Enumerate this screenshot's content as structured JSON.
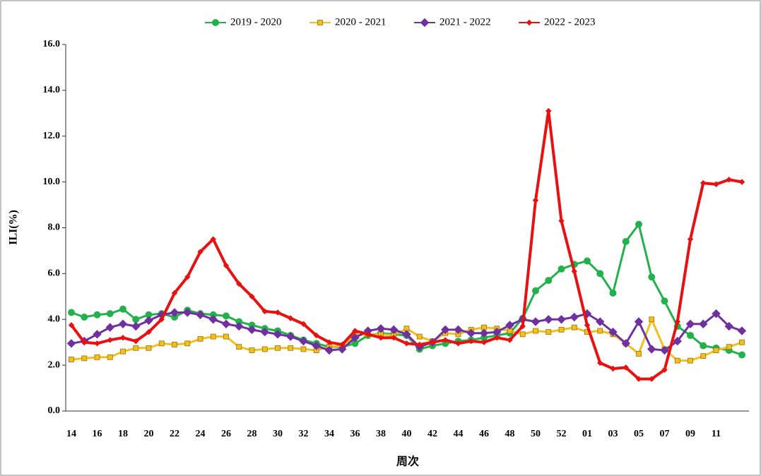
{
  "chart_data": {
    "type": "line",
    "x_label": "周次",
    "y_label": "ILI(%)",
    "categories": [
      "14",
      null,
      "16",
      null,
      "18",
      null,
      "20",
      null,
      "22",
      null,
      "24",
      null,
      "26",
      null,
      "28",
      null,
      "30",
      null,
      "32",
      null,
      "34",
      null,
      "36",
      null,
      "38",
      null,
      "40",
      null,
      "42",
      null,
      "44",
      null,
      "46",
      null,
      "48",
      null,
      "50",
      null,
      "52",
      null,
      "01",
      null,
      "03",
      null,
      "05",
      null,
      "07",
      null,
      "09",
      null,
      "11",
      null,
      null
    ],
    "ylim": [
      0,
      16
    ],
    "yticks": [
      {
        "value": 0,
        "label": "0.0"
      },
      {
        "value": 2,
        "label": "2.0"
      },
      {
        "value": 4,
        "label": "4.0"
      },
      {
        "value": 6,
        "label": "6.0"
      },
      {
        "value": 8,
        "label": "8.0"
      },
      {
        "value": 10,
        "label": "10.0"
      },
      {
        "value": 12,
        "label": "12.0"
      },
      {
        "value": 14,
        "label": "14.0"
      },
      {
        "value": 16,
        "label": "16.0"
      }
    ],
    "grid": false,
    "legend": "top",
    "series": [
      {
        "name": "2019 - 2020",
        "color": "#22b14c",
        "marker": "circle",
        "values": [
          4.3,
          4.1,
          4.2,
          4.25,
          4.45,
          4.0,
          4.2,
          4.25,
          4.1,
          4.4,
          4.25,
          4.2,
          4.15,
          3.9,
          3.75,
          3.6,
          3.5,
          3.3,
          3.1,
          2.95,
          2.8,
          2.8,
          2.95,
          3.3,
          3.4,
          3.35,
          3.3,
          2.7,
          2.85,
          2.95,
          3.05,
          3.1,
          3.2,
          3.3,
          3.4,
          4.05,
          5.25,
          5.7,
          6.2,
          6.4,
          6.55,
          6.0,
          5.15,
          7.4,
          8.15,
          5.85,
          4.8,
          3.7,
          3.3,
          2.85,
          2.75,
          2.65,
          2.45
        ]
      },
      {
        "name": "2020 - 2021",
        "color": "#f0c020",
        "marker": "square",
        "values": [
          2.25,
          2.3,
          2.35,
          2.35,
          2.6,
          2.75,
          2.75,
          2.95,
          2.9,
          2.95,
          3.15,
          3.25,
          3.25,
          2.8,
          2.65,
          2.7,
          2.75,
          2.75,
          2.7,
          2.65,
          2.8,
          2.85,
          3.3,
          3.35,
          3.35,
          3.3,
          3.6,
          3.25,
          3.05,
          3.4,
          3.35,
          3.55,
          3.65,
          3.6,
          3.5,
          3.35,
          3.5,
          3.45,
          3.55,
          3.65,
          3.45,
          3.5,
          3.35,
          2.95,
          2.5,
          4.0,
          2.7,
          2.2,
          2.2,
          2.4,
          2.65,
          2.8,
          3.0
        ]
      },
      {
        "name": "2021 - 2022",
        "color": "#7030a0",
        "marker": "diamond",
        "values": [
          2.95,
          3.05,
          3.35,
          3.65,
          3.8,
          3.7,
          3.95,
          4.2,
          4.3,
          4.3,
          4.2,
          4.0,
          3.8,
          3.7,
          3.55,
          3.45,
          3.35,
          3.25,
          3.05,
          2.85,
          2.65,
          2.7,
          3.2,
          3.5,
          3.6,
          3.55,
          3.35,
          2.8,
          3.0,
          3.55,
          3.55,
          3.4,
          3.4,
          3.45,
          3.75,
          4.0,
          3.9,
          4.0,
          4.0,
          4.1,
          4.25,
          3.9,
          3.45,
          2.95,
          3.9,
          2.7,
          2.65,
          3.05,
          3.8,
          3.8,
          4.25,
          3.7,
          3.5
        ]
      },
      {
        "name": "2022 - 2023",
        "color": "#e81010",
        "marker": "small-diamond",
        "values": [
          3.75,
          3.0,
          2.95,
          3.1,
          3.2,
          3.05,
          3.45,
          4.0,
          5.15,
          5.85,
          6.95,
          7.5,
          6.35,
          5.55,
          5.0,
          4.35,
          4.3,
          4.05,
          3.8,
          3.3,
          3.0,
          2.9,
          3.5,
          3.35,
          3.2,
          3.2,
          2.95,
          2.9,
          3.0,
          3.1,
          2.95,
          3.05,
          3.0,
          3.2,
          3.1,
          3.7,
          9.2,
          13.1,
          8.3,
          6.1,
          3.75,
          2.1,
          1.85,
          1.9,
          1.4,
          1.4,
          1.8,
          3.9,
          7.5,
          9.95,
          9.9,
          10.1,
          10.0
        ]
      }
    ]
  }
}
